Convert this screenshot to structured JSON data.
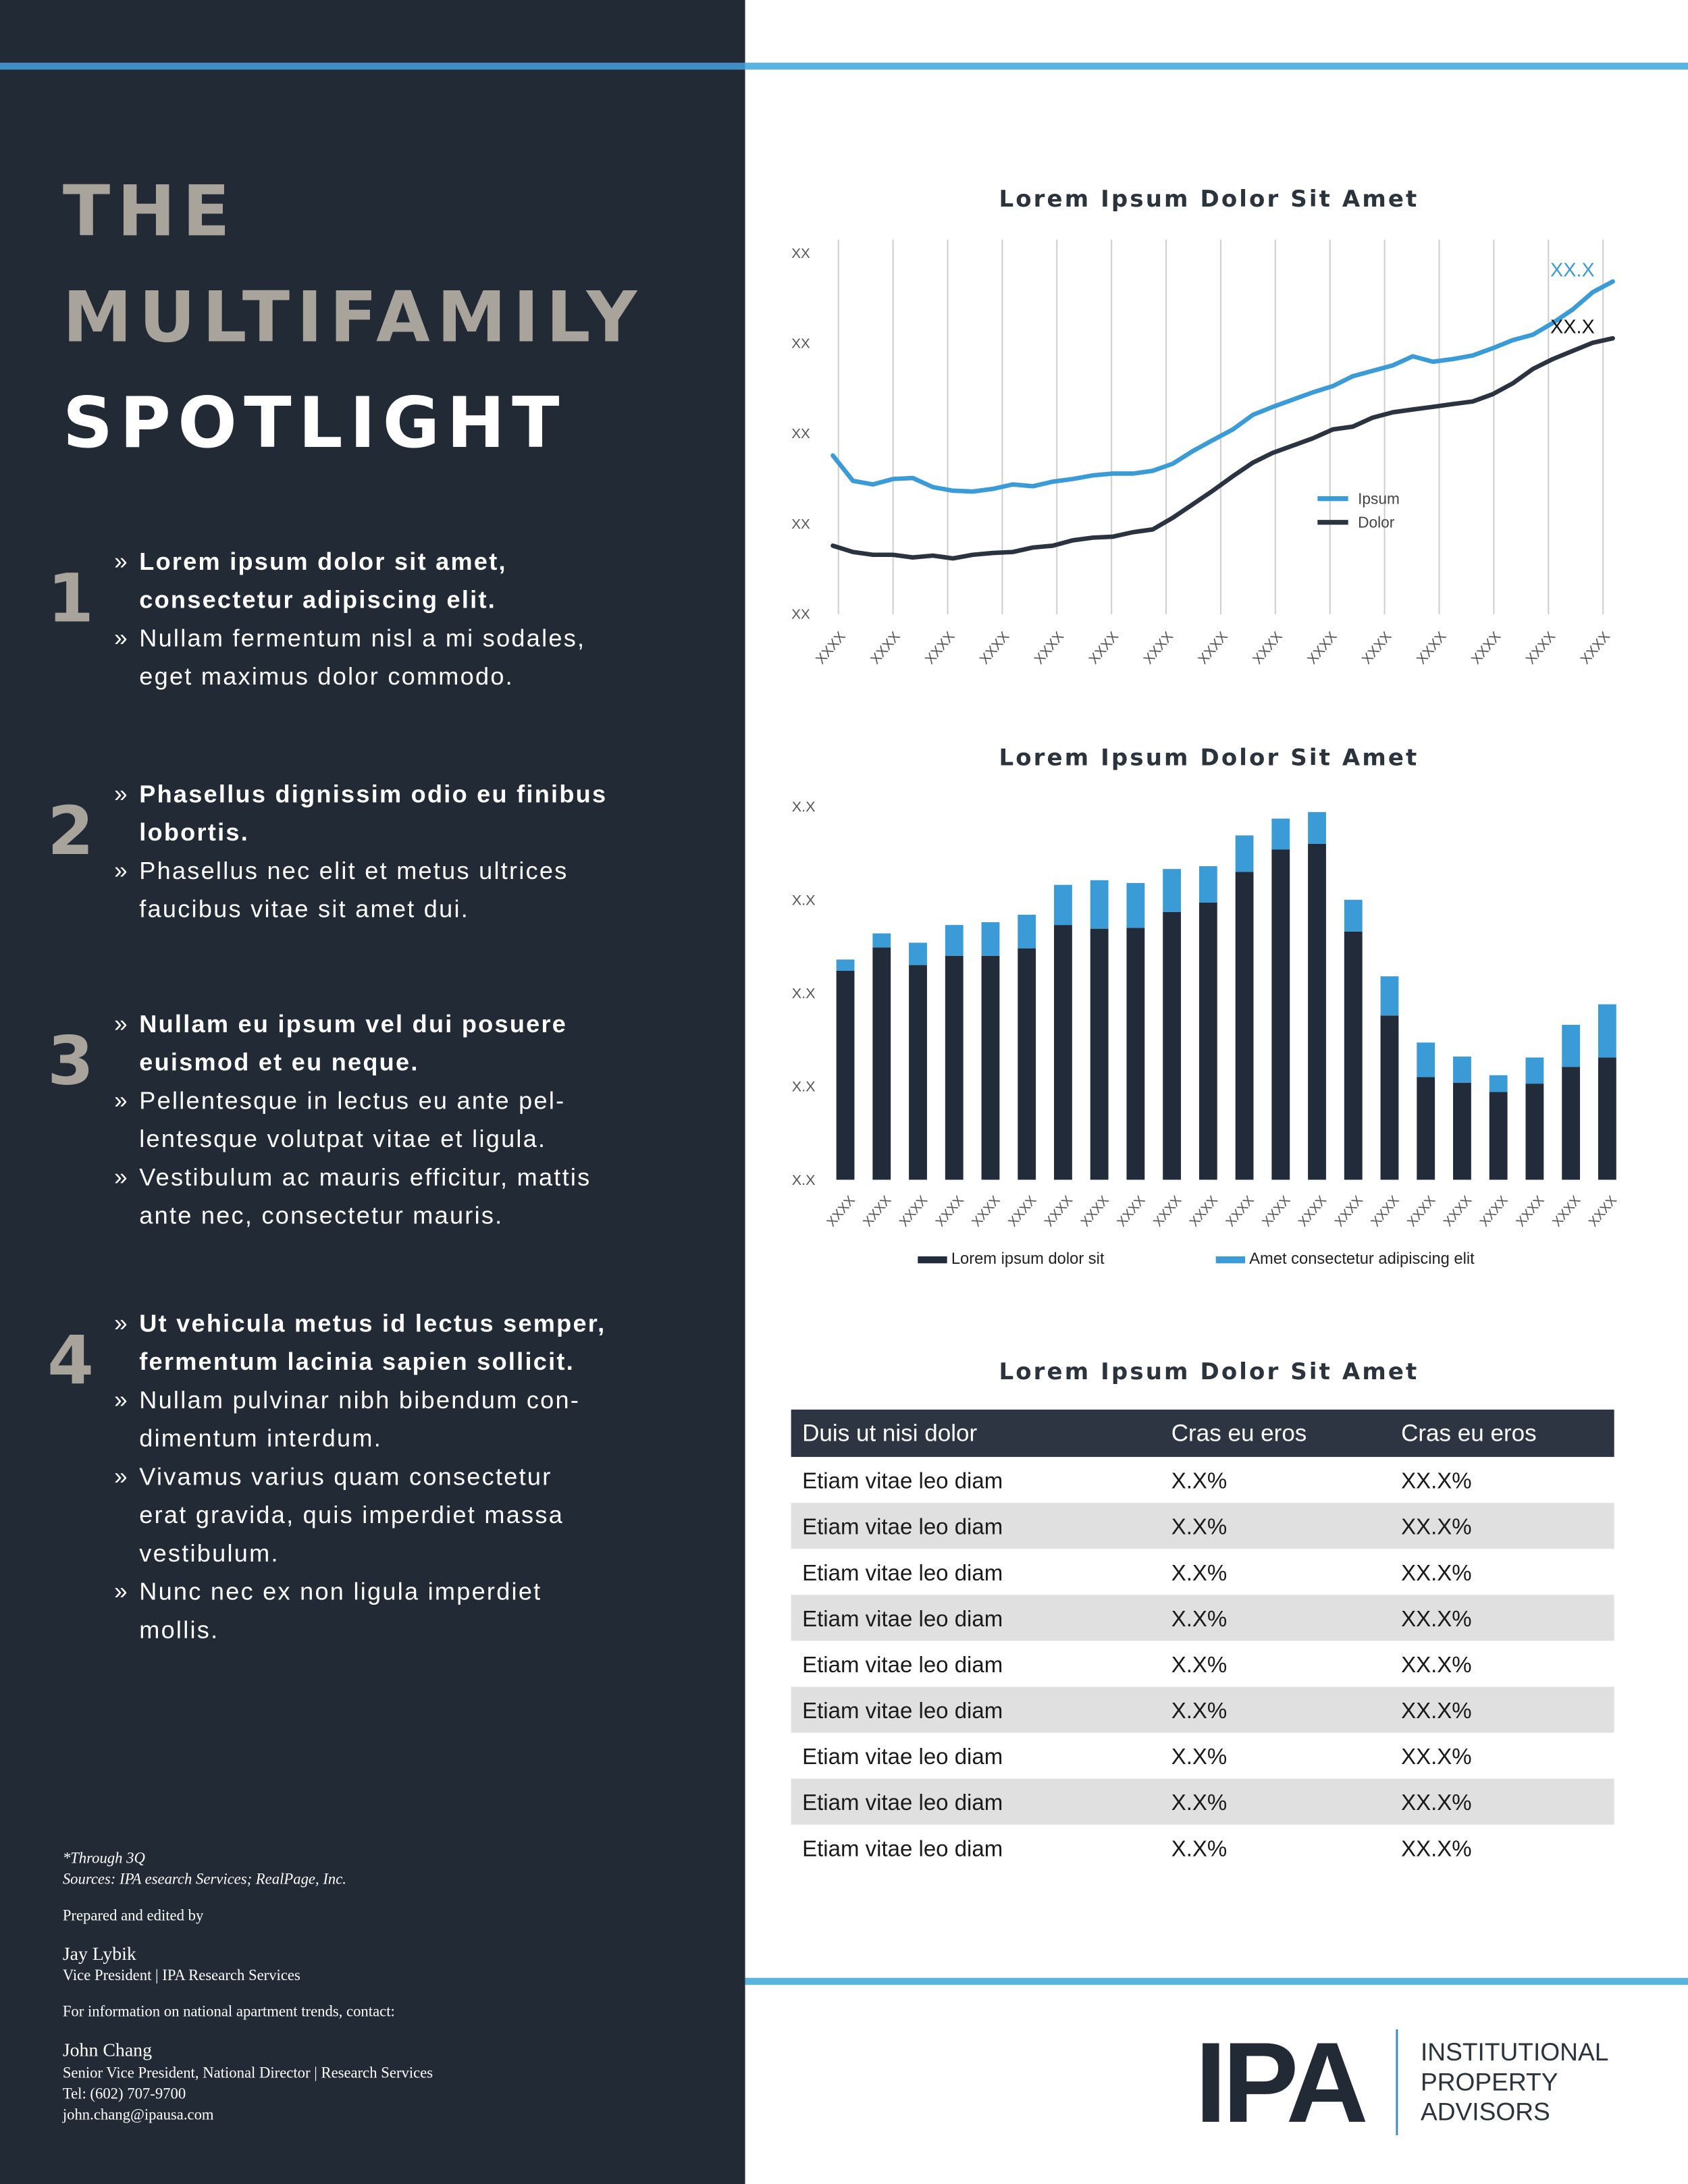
{
  "title": [
    {
      "text": "THE",
      "color": "#a8a49b"
    },
    {
      "text": "MULTIFAMILY",
      "color": "#a8a49b"
    },
    {
      "text": "SPOTLIGHT",
      "color": "#ffffff"
    }
  ],
  "bullet": "»",
  "sections": [
    {
      "number": "1",
      "items": [
        {
          "bold": true,
          "lines": [
            "Lorem ipsum dolor sit amet,",
            "consectetur adipiscing elit."
          ]
        },
        {
          "bold": false,
          "lines": [
            "Nullam fermentum nisl a mi sodales,",
            "eget maximus dolor commodo."
          ]
        }
      ]
    },
    {
      "number": "2",
      "items": [
        {
          "bold": true,
          "lines": [
            "Phasellus dignissim odio eu finibus",
            "lobortis."
          ]
        },
        {
          "bold": false,
          "lines": [
            "Phasellus nec elit et metus ultrices",
            "faucibus vitae sit amet dui."
          ]
        }
      ]
    },
    {
      "number": "3",
      "items": [
        {
          "bold": true,
          "lines": [
            "Nullam eu ipsum vel dui posuere",
            "euismod et eu neque."
          ]
        },
        {
          "bold": false,
          "lines": [
            "Pellentesque in lectus eu ante pel-",
            "lentesque volutpat vitae et ligula."
          ]
        },
        {
          "bold": false,
          "lines": [
            "Vestibulum ac mauris efficitur, mattis",
            "ante nec, consectetur mauris."
          ]
        }
      ]
    },
    {
      "number": "4",
      "items": [
        {
          "bold": true,
          "lines": [
            "Ut vehicula metus id lectus semper,",
            "fermentum lacinia sapien sollicit."
          ]
        },
        {
          "bold": false,
          "lines": [
            "Nullam pulvinar nibh bibendum con-",
            "dimentum interdum."
          ]
        },
        {
          "bold": false,
          "lines": [
            "Vivamus varius quam consectetur",
            "erat gravida, quis imperdiet massa",
            "vestibulum."
          ]
        },
        {
          "bold": false,
          "lines": [
            "Nunc nec ex non ligula imperdiet",
            "mollis."
          ]
        }
      ]
    }
  ],
  "footer": [
    {
      "text": "*Through 3Q",
      "style": "italic"
    },
    {
      "text": "Sources: IPA esearch Services; RealPage, Inc.",
      "style": "italic"
    },
    {
      "text": "Prepared and edited by",
      "style": "normal"
    },
    {
      "text": "Jay Lybik",
      "style": "name"
    },
    {
      "text": "Vice President | IPA Research Services",
      "style": "normal"
    },
    {
      "text": "For information on national apartment trends, contact:",
      "style": "normal"
    },
    {
      "text": "John Chang",
      "style": "name"
    },
    {
      "text": "Senior Vice President, National Director | Research Services",
      "style": "normal"
    },
    {
      "text": "Tel: (602) 707-9700",
      "style": "normal"
    },
    {
      "text": "john.chang@ipausa.com",
      "style": "normal"
    }
  ],
  "charts": [
    {
      "type": "line",
      "title": "Lorem Ipsum Dolor Sit Amet",
      "categories": [
        "XXXX",
        "XXXX",
        "XXXX",
        "XXXX",
        "XXXX",
        "XXXX",
        "XXXX",
        "XXXX",
        "XXXX",
        "XXXX",
        "XXXX",
        "XXXX",
        "XXXX",
        "XXXX",
        "XXXX"
      ],
      "ylim": [
        0,
        4
      ],
      "yticks": [
        {
          "value": 0,
          "label": "XX"
        },
        {
          "value": 1,
          "label": "XX"
        },
        {
          "value": 2,
          "label": "XX"
        },
        {
          "value": 3,
          "label": "XX"
        },
        {
          "value": 4,
          "label": "XX"
        }
      ],
      "grid": true,
      "legend": "right",
      "series": [
        {
          "name": "Ipsum",
          "color": "#3b9bd6",
          "end_label": "XX.X",
          "values": [
            1.76,
            1.48,
            1.44,
            1.5,
            1.51,
            1.41,
            1.37,
            1.36,
            1.39,
            1.44,
            1.42,
            1.47,
            1.5,
            1.54,
            1.56,
            1.56,
            1.59,
            1.67,
            1.81,
            1.93,
            2.05,
            2.21,
            2.3,
            2.38,
            2.46,
            2.53,
            2.64,
            2.7,
            2.76,
            2.86,
            2.8,
            2.83,
            2.87,
            2.95,
            3.04,
            3.1,
            3.23,
            3.38,
            3.57,
            3.69
          ]
        },
        {
          "name": "Dolor",
          "color": "#2a333f",
          "end_label": "XX.X",
          "values": [
            0.76,
            0.69,
            0.66,
            0.66,
            0.63,
            0.65,
            0.62,
            0.66,
            0.68,
            0.69,
            0.74,
            0.76,
            0.82,
            0.85,
            0.86,
            0.91,
            0.94,
            1.07,
            1.22,
            1.37,
            1.53,
            1.68,
            1.79,
            1.87,
            1.95,
            2.05,
            2.08,
            2.18,
            2.24,
            2.27,
            2.3,
            2.33,
            2.36,
            2.44,
            2.56,
            2.72,
            2.83,
            2.92,
            3.01,
            3.06
          ]
        }
      ]
    },
    {
      "type": "bar",
      "stacked": true,
      "title": "Lorem Ipsum Dolor Sit Amet",
      "categories": [
        "XXXX",
        "XXXX",
        "XXXX",
        "XXXX",
        "XXXX",
        "XXXX",
        "XXXX",
        "XXXX",
        "XXXX",
        "XXXX",
        "XXXX",
        "XXXX",
        "XXXX",
        "XXXX",
        "XXXX",
        "XXXX",
        "XXXX",
        "XXXX",
        "XXXX",
        "XXXX",
        "XXXX",
        "XXXX"
      ],
      "ylim": [
        0,
        4
      ],
      "yticks": [
        {
          "value": 0,
          "label": "X.X"
        },
        {
          "value": 1,
          "label": "X.X"
        },
        {
          "value": 2,
          "label": "X.X"
        },
        {
          "value": 3,
          "label": "X.X"
        },
        {
          "value": 4,
          "label": "X.X"
        }
      ],
      "legend": "bottom",
      "series": [
        {
          "name": "Lorem ipsum dolor sit",
          "color": "#222b3a",
          "values": [
            2.24,
            2.49,
            2.3,
            2.4,
            2.4,
            2.48,
            2.73,
            2.69,
            2.7,
            2.87,
            2.97,
            3.3,
            3.54,
            3.6,
            2.66,
            1.76,
            1.1,
            1.04,
            0.94,
            1.03,
            1.21,
            1.31
          ]
        },
        {
          "name": "Amet consectetur adipiscing elit",
          "color": "#3b9bd6",
          "values": [
            0.12,
            0.15,
            0.24,
            0.33,
            0.36,
            0.36,
            0.43,
            0.52,
            0.48,
            0.46,
            0.39,
            0.39,
            0.33,
            0.34,
            0.34,
            0.42,
            0.37,
            0.28,
            0.18,
            0.28,
            0.45,
            0.57
          ]
        }
      ]
    }
  ],
  "table": {
    "title": "Lorem Ipsum Dolor Sit Amet",
    "header": [
      "Duis ut nisi dolor",
      "Cras eu eros",
      "Cras eu eros"
    ],
    "rows": [
      [
        "Etiam vitae leo diam",
        "X.X%",
        "XX.X%"
      ],
      [
        "Etiam vitae leo diam",
        "X.X%",
        "XX.X%"
      ],
      [
        "Etiam vitae leo diam",
        "X.X%",
        "XX.X%"
      ],
      [
        "Etiam vitae leo diam",
        "X.X%",
        "XX.X%"
      ],
      [
        "Etiam vitae leo diam",
        "X.X%",
        "XX.X%"
      ],
      [
        "Etiam vitae leo diam",
        "X.X%",
        "XX.X%"
      ],
      [
        "Etiam vitae leo diam",
        "X.X%",
        "XX.X%"
      ],
      [
        "Etiam vitae leo diam",
        "X.X%",
        "XX.X%"
      ],
      [
        "Etiam vitae leo diam",
        "X.X%",
        "XX.X%"
      ]
    ]
  },
  "logo": {
    "mark": "IPA",
    "lines": [
      "INSTITUTIONAL",
      "PROPERTY",
      "ADVISORS"
    ]
  }
}
